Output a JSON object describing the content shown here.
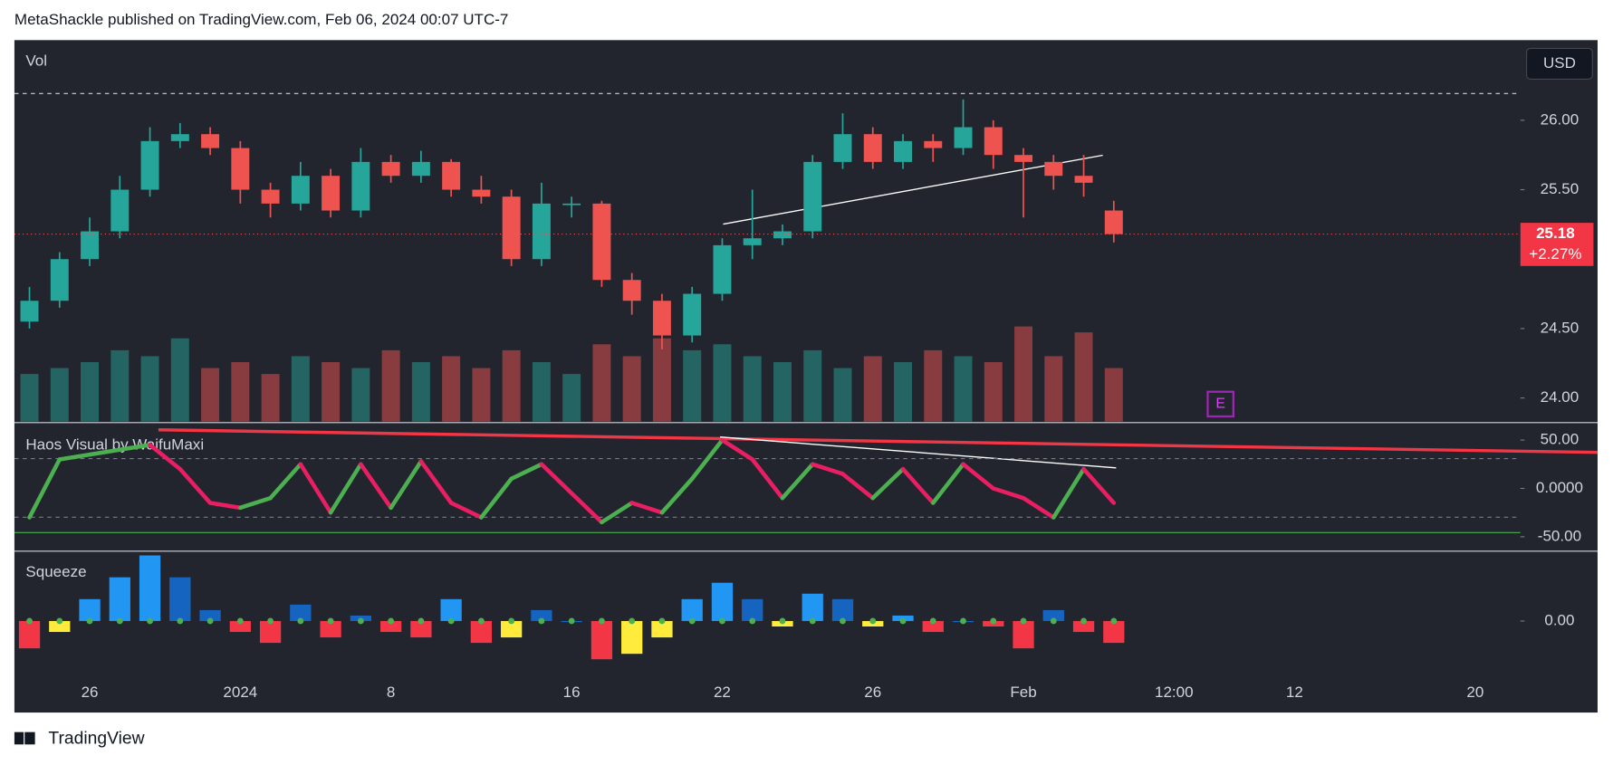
{
  "header": {
    "published": "MetaShackle published on TradingView.com, Feb 06, 2024 00:07 UTC-7"
  },
  "currency_button": "USD",
  "event_marker": "E",
  "footer": {
    "brand": "TradingView"
  },
  "chart_data": [
    {
      "type": "candlestick",
      "volume_label": "Vol",
      "categories": [
        null,
        null,
        "26",
        null,
        null,
        null,
        null,
        "2024",
        null,
        null,
        null,
        null,
        "8",
        null,
        null,
        null,
        null,
        null,
        "16",
        null,
        null,
        null,
        null,
        "22",
        null,
        null,
        null,
        null,
        "26",
        null,
        null,
        null,
        null,
        "Feb",
        null,
        null,
        null,
        null,
        "12:00",
        null,
        null,
        null,
        "12",
        null,
        null,
        null,
        null,
        null,
        "20",
        null
      ],
      "open": [
        24.55,
        24.7,
        25.0,
        25.2,
        25.5,
        25.85,
        25.9,
        25.8,
        25.5,
        25.4,
        25.6,
        25.35,
        25.7,
        25.6,
        25.7,
        25.5,
        25.45,
        25.0,
        25.4,
        25.4,
        24.85,
        24.7,
        24.45,
        24.75,
        25.1,
        25.15,
        25.2,
        25.7,
        25.9,
        25.7,
        25.85,
        25.8,
        25.95,
        25.75,
        25.7,
        25.6,
        25.35,
        null,
        null,
        null,
        null,
        null,
        null,
        null,
        null,
        null,
        null,
        null,
        null,
        null
      ],
      "high": [
        24.8,
        25.05,
        25.3,
        25.6,
        25.95,
        25.98,
        25.95,
        25.85,
        25.55,
        25.7,
        25.65,
        25.8,
        25.75,
        25.78,
        25.72,
        25.6,
        25.5,
        25.55,
        25.45,
        25.42,
        24.9,
        24.75,
        24.8,
        25.15,
        25.5,
        25.25,
        25.75,
        26.05,
        25.95,
        25.9,
        25.9,
        26.15,
        26.0,
        25.8,
        25.75,
        25.75,
        25.42,
        null,
        null,
        null,
        null,
        null,
        null,
        null,
        null,
        null,
        null,
        null,
        null,
        null
      ],
      "low": [
        24.5,
        24.65,
        24.95,
        25.15,
        25.45,
        25.8,
        25.75,
        25.4,
        25.3,
        25.35,
        25.3,
        25.3,
        25.55,
        25.55,
        25.45,
        25.4,
        24.95,
        24.95,
        25.3,
        24.8,
        24.6,
        24.35,
        24.4,
        24.7,
        25.0,
        25.1,
        25.15,
        25.65,
        25.65,
        25.65,
        25.7,
        25.75,
        25.65,
        25.3,
        25.5,
        25.45,
        25.12,
        null,
        null,
        null,
        null,
        null,
        null,
        null,
        null,
        null,
        null,
        null,
        null,
        null
      ],
      "close": [
        24.7,
        25.0,
        25.2,
        25.5,
        25.85,
        25.9,
        25.8,
        25.5,
        25.4,
        25.6,
        25.35,
        25.7,
        25.6,
        25.7,
        25.5,
        25.45,
        25.0,
        25.4,
        25.4,
        24.85,
        24.7,
        24.45,
        24.75,
        25.1,
        25.15,
        25.2,
        25.7,
        25.9,
        25.7,
        25.85,
        25.8,
        25.95,
        25.75,
        25.7,
        25.6,
        25.55,
        25.18,
        null,
        null,
        null,
        null,
        null,
        null,
        null,
        null,
        null,
        null,
        null,
        null,
        null
      ],
      "up_color": "#26a69a",
      "down_color": "#ef5350",
      "ylim": [
        23.83,
        26.57
      ],
      "yticks": [
        {
          "value": 24,
          "label": "24.00"
        },
        {
          "value": 24.5,
          "label": "24.50"
        },
        {
          "value": 25.5,
          "label": "25.50"
        },
        {
          "value": 26,
          "label": "26.00"
        }
      ],
      "last_price": 25.18,
      "change": {
        "value": 2.27,
        "label": "+2.27%"
      }
    },
    {
      "type": "volume",
      "values": [
        40,
        45,
        50,
        60,
        55,
        70,
        45,
        50,
        40,
        55,
        50,
        45,
        60,
        50,
        55,
        45,
        60,
        50,
        40,
        65,
        55,
        70,
        60,
        65,
        55,
        50,
        60,
        45,
        55,
        50,
        60,
        55,
        50,
        80,
        55,
        75,
        45,
        null,
        null,
        null,
        null,
        null,
        null,
        null,
        null,
        null,
        null,
        null,
        null,
        null
      ],
      "ylim": [
        0,
        320
      ]
    },
    {
      "type": "line",
      "title": "Haos Visual by WaifuMaxi",
      "values": [
        -30,
        30,
        35,
        40,
        45,
        20,
        -15,
        -20,
        -10,
        25,
        -25,
        25,
        -20,
        28,
        -15,
        -30,
        10,
        25,
        -5,
        -35,
        -15,
        -25,
        10,
        50,
        30,
        -10,
        25,
        15,
        -10,
        20,
        -15,
        25,
        0,
        -10,
        -30,
        20,
        -15,
        null,
        null,
        null,
        null,
        null,
        null,
        null,
        null,
        null,
        null,
        null,
        null,
        null
      ],
      "rising_color": "#4caf50",
      "falling_color": "#e91e63",
      "ylim": [
        -63.8,
        67
      ],
      "yticks": [
        {
          "value": 50,
          "label": "50.00"
        },
        {
          "value": 0,
          "label": "0.0000"
        },
        {
          "value": -50,
          "label": "-50.00"
        }
      ]
    },
    {
      "type": "histogram",
      "title": "Squeeze",
      "values": [
        -0.25,
        -0.1,
        0.2,
        0.4,
        0.6,
        0.4,
        0.1,
        -0.1,
        -0.2,
        0.15,
        -0.15,
        0.05,
        -0.1,
        -0.15,
        0.2,
        -0.2,
        -0.15,
        0.1,
        0.0,
        -0.35,
        -0.3,
        -0.15,
        0.2,
        0.35,
        0.2,
        -0.05,
        0.25,
        0.2,
        -0.05,
        0.05,
        -0.1,
        0.0,
        -0.05,
        -0.25,
        0.1,
        -0.1,
        -0.2,
        null,
        null,
        null,
        null,
        null,
        null,
        null,
        null,
        null,
        null,
        null,
        null,
        null
      ],
      "pos_rising_color": "#2196f3",
      "pos_falling_color": "#1565c0",
      "neg_falling_color": "#f23645",
      "neg_rising_color": "#ffeb3b",
      "ylim": [
        -0.48,
        0.63
      ],
      "yticks": [
        {
          "value": 0,
          "label": "0.00"
        }
      ]
    }
  ]
}
